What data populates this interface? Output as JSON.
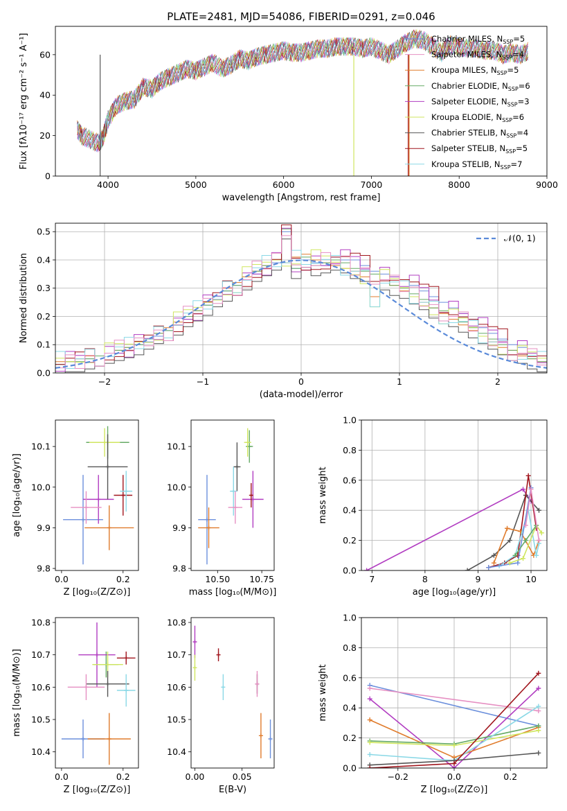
{
  "title": "PLATE=2481, MJD=54086, FIBERID=0291, z=0.046",
  "colors": [
    "#6b8fdc",
    "#e07b2b",
    "#66aa66",
    "#b13cc1",
    "#cfe65f",
    "#555555",
    "#a0141c",
    "#8ad8e6",
    "#e68fc2"
  ],
  "chart_data": [
    {
      "id": "spectrum",
      "type": "line",
      "xlabel": "wavelength [Angstrom, rest frame]",
      "ylabel": "Flux [fλ10⁻¹⁷ erg cm⁻² s⁻¹ A⁻¹]",
      "xlim": [
        3400,
        9000
      ],
      "ylim": [
        0,
        74
      ],
      "xticks": [
        "4000",
        "5000",
        "6000",
        "7000",
        "8000",
        "9000"
      ],
      "yticks": [
        "0",
        "20",
        "40",
        "60"
      ],
      "x": [
        3650,
        3700,
        3800,
        3900,
        3950,
        4000,
        4100,
        4200,
        4300,
        4400,
        4500,
        4600,
        4700,
        4800,
        4900,
        5000,
        5100,
        5200,
        5300,
        5400,
        5500,
        5600,
        5700,
        5800,
        5900,
        6000,
        6100,
        6200,
        6300,
        6400,
        6500,
        6600,
        6700,
        6800,
        6900,
        7000,
        7100,
        7200,
        7300,
        7400,
        7500,
        7600,
        7700,
        7800,
        7900,
        8000,
        8100,
        8200,
        8300,
        8400,
        8500,
        8600,
        8700,
        8800
      ],
      "y": [
        23,
        20,
        18,
        16,
        20,
        28,
        35,
        37,
        38,
        44,
        43,
        47,
        49,
        51,
        53,
        52,
        54,
        56,
        53,
        55,
        58,
        57,
        59,
        60,
        61,
        62,
        61,
        61,
        62,
        63,
        63,
        64,
        64,
        64,
        63,
        64,
        62,
        60,
        63,
        66,
        68,
        67,
        64,
        61,
        65,
        64,
        63,
        63,
        62,
        62,
        60,
        61,
        60,
        62
      ],
      "drops": [
        {
          "x": 3910,
          "color": "#555555"
        },
        {
          "x": 6800,
          "color": "#cfe65f"
        },
        {
          "x": 7420,
          "color": "#a0141c"
        },
        {
          "x": 7430,
          "color": "#e07b2b"
        }
      ],
      "legend": [
        {
          "label": "Chabrier MILES, N",
          "sub": "SSP",
          "value": "=5",
          "color": "#6b8fdc"
        },
        {
          "label": "Salpeter MILES, N",
          "sub": "SSP",
          "value": "=4",
          "color": "#e68fc2"
        },
        {
          "label": "Kroupa MILES, N",
          "sub": "SSP",
          "value": "=5",
          "color": "#e07b2b"
        },
        {
          "label": "Chabrier ELODIE, N",
          "sub": "SSP",
          "value": "=6",
          "color": "#66aa66"
        },
        {
          "label": "Salpeter ELODIE, N",
          "sub": "SSP",
          "value": "=3",
          "color": "#b13cc1"
        },
        {
          "label": "Kroupa ELODIE, N",
          "sub": "SSP",
          "value": "=6",
          "color": "#cfe65f"
        },
        {
          "label": "Chabrier STELIB, N",
          "sub": "SSP",
          "value": "=4",
          "color": "#555555"
        },
        {
          "label": "Salpeter STELIB, N",
          "sub": "SSP",
          "value": "=5",
          "color": "#a0141c"
        },
        {
          "label": "Kroupa STELIB, N",
          "sub": "SSP",
          "value": "=7",
          "color": "#8ad8e6"
        }
      ],
      "legend_position": "upper right"
    },
    {
      "id": "residuals",
      "type": "line",
      "xlabel": "(data-model)/error",
      "ylabel": "Normed distribution",
      "xlim": [
        -2.5,
        2.5
      ],
      "ylim": [
        0,
        0.53
      ],
      "xticks": [
        "−2",
        "−1",
        "0",
        "1",
        "2"
      ],
      "yticks": [
        "0.0",
        "0.1",
        "0.2",
        "0.3",
        "0.4",
        "0.5"
      ],
      "grid": true,
      "gaussian_label": "𝒩(0, 1)",
      "gaussian_color": "#5a8ad9",
      "legend_position": "upper right",
      "bin_width": 0.1,
      "bins_start": -2.5,
      "series_values": [
        [
          0.03,
          0.04,
          0.05,
          0.05,
          0.06,
          0.07,
          0.07,
          0.08,
          0.1,
          0.11,
          0.13,
          0.15,
          0.17,
          0.19,
          0.21,
          0.24,
          0.26,
          0.29,
          0.31,
          0.33,
          0.35,
          0.37,
          0.39,
          0.5,
          0.37,
          0.4,
          0.39,
          0.38,
          0.41,
          0.4,
          0.4,
          0.38,
          0.36,
          0.35,
          0.34,
          0.33,
          0.31,
          0.29,
          0.27,
          0.25,
          0.23,
          0.21,
          0.19,
          0.16,
          0.14,
          0.12,
          0.1,
          0.09,
          0.07,
          0.06,
          0.05
        ],
        [
          0.04,
          0.04,
          0.05,
          0.06,
          0.06,
          0.07,
          0.08,
          0.09,
          0.11,
          0.12,
          0.14,
          0.16,
          0.18,
          0.2,
          0.22,
          0.25,
          0.27,
          0.3,
          0.32,
          0.34,
          0.36,
          0.38,
          0.4,
          0.39,
          0.41,
          0.42,
          0.4,
          0.39,
          0.38,
          0.37,
          0.36,
          0.34,
          0.27,
          0.33,
          0.31,
          0.29,
          0.27,
          0.25,
          0.23,
          0.21,
          0.19,
          0.17,
          0.15,
          0.13,
          0.11,
          0.09,
          0.08,
          0.06,
          0.05,
          0.04,
          0.03
        ],
        [
          0.03,
          0.04,
          0.04,
          0.05,
          0.06,
          0.07,
          0.08,
          0.09,
          0.1,
          0.12,
          0.14,
          0.15,
          0.17,
          0.2,
          0.22,
          0.24,
          0.27,
          0.29,
          0.31,
          0.33,
          0.36,
          0.38,
          0.4,
          0.51,
          0.37,
          0.41,
          0.38,
          0.39,
          0.4,
          0.39,
          0.37,
          0.36,
          0.35,
          0.33,
          0.31,
          0.3,
          0.28,
          0.26,
          0.23,
          0.22,
          0.2,
          0.18,
          0.16,
          0.14,
          0.12,
          0.1,
          0.08,
          0.07,
          0.05,
          0.04,
          0.03
        ]
      ],
      "series_colors": [
        "#6b8fdc",
        "#e07b2b",
        "#66aa66"
      ]
    },
    {
      "id": "age-vs-Z",
      "type": "scatter",
      "xlabel": "Z [log₁₀(Z/Z⊙)]",
      "ylabel": "age  [log₁₀(age/yr)]",
      "xlim": [
        -0.02,
        0.25
      ],
      "ylim": [
        9.795,
        10.165
      ],
      "xticks": [
        "0.0",
        "0.2"
      ],
      "yticks": [
        "9.8",
        "9.9",
        "10.0",
        "10.1"
      ],
      "points": [
        {
          "x": 0.07,
          "y": 9.92,
          "xerr": 0.065,
          "yerr": 0.11,
          "color": "#6b8fdc"
        },
        {
          "x": 0.155,
          "y": 9.9,
          "xerr": 0.08,
          "yerr": 0.055,
          "color": "#e07b2b"
        },
        {
          "x": 0.15,
          "y": 10.11,
          "xerr": 0.07,
          "yerr": 0.04,
          "color": "#66aa66"
        },
        {
          "x": 0.12,
          "y": 9.97,
          "xerr": 0.05,
          "yerr": 0.06,
          "color": "#b13cc1"
        },
        {
          "x": 0.14,
          "y": 10.11,
          "xerr": 0.05,
          "yerr": 0.035,
          "color": "#cfe65f"
        },
        {
          "x": 0.15,
          "y": 10.05,
          "xerr": 0.065,
          "yerr": 0.08,
          "color": "#555555"
        },
        {
          "x": 0.2,
          "y": 9.98,
          "xerr": 0.03,
          "yerr": 0.05,
          "color": "#a0141c"
        },
        {
          "x": 0.21,
          "y": 9.99,
          "xerr": 0.02,
          "yerr": 0.05,
          "color": "#8ad8e6"
        },
        {
          "x": 0.08,
          "y": 9.95,
          "xerr": 0.05,
          "yerr": 0.04,
          "color": "#e68fc2"
        }
      ]
    },
    {
      "id": "age-vs-mass",
      "type": "scatter",
      "xlabel": "mass [log₁₀(M/M⊙)]",
      "ylabel": "",
      "xlim": [
        10.35,
        10.82
      ],
      "ylim": [
        9.795,
        10.165
      ],
      "xticks": [
        "10.50",
        "10.75"
      ],
      "yticks": [
        "9.8",
        "9.9",
        "10.0",
        "10.1"
      ],
      "points": [
        {
          "x": 10.44,
          "y": 9.92,
          "xerr": 0.05,
          "yerr": 0.11,
          "color": "#6b8fdc"
        },
        {
          "x": 10.45,
          "y": 9.9,
          "xerr": 0.06,
          "yerr": 0.05,
          "color": "#e07b2b"
        },
        {
          "x": 10.68,
          "y": 10.1,
          "xerr": 0.02,
          "yerr": 0.04,
          "color": "#66aa66"
        },
        {
          "x": 10.7,
          "y": 9.97,
          "xerr": 0.06,
          "yerr": 0.07,
          "color": "#b13cc1"
        },
        {
          "x": 10.67,
          "y": 10.11,
          "xerr": 0.02,
          "yerr": 0.035,
          "color": "#cfe65f"
        },
        {
          "x": 10.61,
          "y": 10.05,
          "xerr": 0.02,
          "yerr": 0.06,
          "color": "#555555"
        },
        {
          "x": 10.69,
          "y": 9.98,
          "xerr": 0.005,
          "yerr": 0.03,
          "color": "#a0141c"
        },
        {
          "x": 10.59,
          "y": 9.99,
          "xerr": 0.02,
          "yerr": 0.06,
          "color": "#8ad8e6"
        },
        {
          "x": 10.6,
          "y": 9.95,
          "xerr": 0.04,
          "yerr": 0.04,
          "color": "#e68fc2"
        }
      ]
    },
    {
      "id": "mass-weight-vs-age",
      "type": "line",
      "xlabel": "age  [log₁₀(age/yr)]",
      "ylabel": "mass weight",
      "xlim": [
        6.8,
        10.3
      ],
      "ylim": [
        0,
        1
      ],
      "xticks": [
        "7",
        "8",
        "9",
        "10"
      ],
      "yticks": [
        "0.0",
        "0.2",
        "0.4",
        "0.6",
        "0.8",
        "1.0"
      ],
      "grid": true,
      "series": [
        {
          "color": "#b13cc1",
          "x": [
            6.9,
            9.85,
            10.0
          ],
          "y": [
            0.0,
            0.54,
            0.46
          ]
        },
        {
          "color": "#555555",
          "x": [
            8.8,
            9.3,
            9.6,
            9.9,
            10.15
          ],
          "y": [
            0.0,
            0.1,
            0.2,
            0.5,
            0.4
          ]
        },
        {
          "color": "#a0141c",
          "x": [
            9.2,
            9.5,
            9.75,
            9.95,
            10.1
          ],
          "y": [
            0.02,
            0.05,
            0.1,
            0.63,
            0.28
          ]
        },
        {
          "color": "#e07b2b",
          "x": [
            9.3,
            9.55,
            9.8,
            10.05,
            10.15
          ],
          "y": [
            0.05,
            0.28,
            0.26,
            0.1,
            0.2
          ]
        },
        {
          "color": "#8ad8e6",
          "x": [
            9.4,
            9.7,
            9.95,
            10.1,
            10.15
          ],
          "y": [
            0.03,
            0.1,
            0.4,
            0.1,
            0.18
          ]
        },
        {
          "color": "#6b8fdc",
          "x": [
            9.2,
            9.75,
            10.0
          ],
          "y": [
            0.02,
            0.05,
            0.55
          ]
        },
        {
          "color": "#cfe65f",
          "x": [
            9.6,
            9.85,
            10.1,
            10.2
          ],
          "y": [
            0.05,
            0.08,
            0.3,
            0.25
          ]
        },
        {
          "color": "#66aa66",
          "x": [
            9.7,
            9.9,
            10.1
          ],
          "y": [
            0.1,
            0.2,
            0.3
          ]
        },
        {
          "color": "#e68fc2",
          "x": [
            9.9,
            10.0,
            10.15
          ],
          "y": [
            0.3,
            0.54,
            0.2
          ]
        }
      ]
    },
    {
      "id": "mass-vs-Z",
      "type": "scatter",
      "xlabel": "Z [log₁₀(Z/Z⊙)]",
      "ylabel": "mass [log₁₀(M/M⊙)]",
      "xlim": [
        -0.02,
        0.25
      ],
      "ylim": [
        10.35,
        10.815
      ],
      "xticks": [
        "0.0",
        "0.2"
      ],
      "yticks": [
        "10.4",
        "10.5",
        "10.6",
        "10.7",
        "10.8"
      ],
      "points": [
        {
          "x": 0.07,
          "y": 10.44,
          "xerr": 0.07,
          "yerr": 0.06,
          "color": "#6b8fdc"
        },
        {
          "x": 0.155,
          "y": 10.44,
          "xerr": 0.07,
          "yerr": 0.08,
          "color": "#e07b2b"
        },
        {
          "x": 0.145,
          "y": 10.67,
          "xerr": 0.04,
          "yerr": 0.04,
          "color": "#66aa66"
        },
        {
          "x": 0.115,
          "y": 10.7,
          "xerr": 0.06,
          "yerr": 0.1,
          "color": "#b13cc1"
        },
        {
          "x": 0.15,
          "y": 10.67,
          "xerr": 0.05,
          "yerr": 0.04,
          "color": "#cfe65f"
        },
        {
          "x": 0.15,
          "y": 10.61,
          "xerr": 0.07,
          "yerr": 0.04,
          "color": "#555555"
        },
        {
          "x": 0.21,
          "y": 10.69,
          "xerr": 0.03,
          "yerr": 0.02,
          "color": "#a0141c"
        },
        {
          "x": 0.21,
          "y": 10.59,
          "xerr": 0.03,
          "yerr": 0.05,
          "color": "#8ad8e6"
        },
        {
          "x": 0.08,
          "y": 10.6,
          "xerr": 0.06,
          "yerr": 0.04,
          "color": "#e68fc2"
        }
      ]
    },
    {
      "id": "mass-vs-ebv",
      "type": "scatter",
      "xlabel": "E(B-V)",
      "ylabel": "",
      "xlim": [
        -0.004,
        0.084
      ],
      "ylim": [
        10.35,
        10.815
      ],
      "xticks": [
        "0.00",
        "0.05"
      ],
      "yticks": [
        "10.4",
        "10.5",
        "10.6",
        "10.7",
        "10.8"
      ],
      "points": [
        {
          "x": 0.0,
          "y": 10.74,
          "xerr": 0,
          "yerr": 0.05,
          "color": "#b13cc1"
        },
        {
          "x": 0.0,
          "y": 10.66,
          "xerr": 0,
          "yerr": 0.04,
          "color": "#cfe65f"
        },
        {
          "x": 0.025,
          "y": 10.7,
          "xerr": 0,
          "yerr": 0.02,
          "color": "#a0141c"
        },
        {
          "x": 0.03,
          "y": 10.6,
          "xerr": 0,
          "yerr": 0.04,
          "color": "#8ad8e6"
        },
        {
          "x": 0.066,
          "y": 10.61,
          "xerr": 0,
          "yerr": 0.03,
          "color": "#555555"
        },
        {
          "x": 0.066,
          "y": 10.61,
          "xerr": 0,
          "yerr": 0.04,
          "color": "#e68fc2"
        },
        {
          "x": 0.07,
          "y": 10.45,
          "xerr": 0,
          "yerr": 0.07,
          "color": "#e07b2b"
        },
        {
          "x": 0.08,
          "y": 10.44,
          "xerr": 0,
          "yerr": 0.06,
          "color": "#6b8fdc"
        }
      ]
    },
    {
      "id": "mass-weight-vs-Z",
      "type": "line",
      "xlabel": "Z [log₁₀(Z/Z⊙)]",
      "ylabel": "mass weight",
      "xlim": [
        -0.33,
        0.33
      ],
      "ylim": [
        0,
        1
      ],
      "xticks": [
        "−0.2",
        "0.0",
        "0.2"
      ],
      "yticks": [
        "0.0",
        "0.2",
        "0.4",
        "0.6",
        "0.8",
        "1.0"
      ],
      "grid": true,
      "series": [
        {
          "color": "#6b8fdc",
          "x": [
            -0.3,
            0.3
          ],
          "y": [
            0.55,
            0.28
          ]
        },
        {
          "color": "#e68fc2",
          "x": [
            -0.3,
            0.3
          ],
          "y": [
            0.53,
            0.38
          ]
        },
        {
          "color": "#b13cc1",
          "x": [
            -0.3,
            0.0,
            0.3
          ],
          "y": [
            0.46,
            0.0,
            0.53
          ]
        },
        {
          "color": "#e07b2b",
          "x": [
            -0.3,
            0.0,
            0.3
          ],
          "y": [
            0.32,
            0.07,
            0.27
          ]
        },
        {
          "color": "#66aa66",
          "x": [
            -0.3,
            0.0,
            0.3
          ],
          "y": [
            0.18,
            0.16,
            0.28
          ]
        },
        {
          "color": "#cfe65f",
          "x": [
            -0.3,
            0.0,
            0.3
          ],
          "y": [
            0.17,
            0.15,
            0.25
          ]
        },
        {
          "color": "#8ad8e6",
          "x": [
            -0.3,
            0.0,
            0.3
          ],
          "y": [
            0.09,
            0.05,
            0.41
          ]
        },
        {
          "color": "#555555",
          "x": [
            -0.3,
            0.0,
            0.3
          ],
          "y": [
            0.02,
            0.05,
            0.1
          ]
        },
        {
          "color": "#a0141c",
          "x": [
            -0.3,
            0.0,
            0.3
          ],
          "y": [
            0.0,
            0.03,
            0.63
          ]
        }
      ]
    }
  ]
}
